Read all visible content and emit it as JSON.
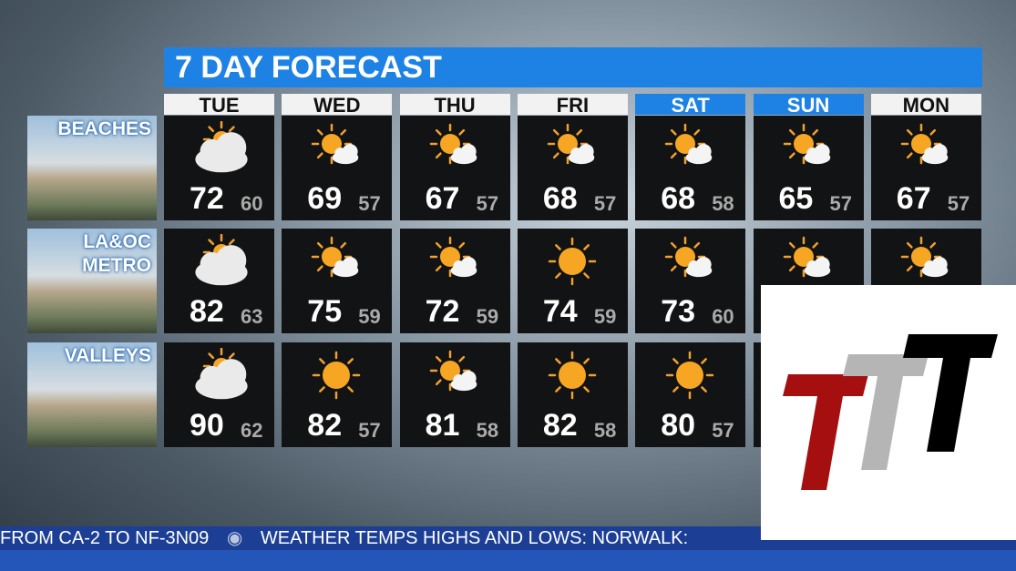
{
  "title": "7 DAY FORECAST",
  "days": [
    {
      "label": "TUE",
      "highlight": false
    },
    {
      "label": "WED",
      "highlight": false
    },
    {
      "label": "THU",
      "highlight": false
    },
    {
      "label": "FRI",
      "highlight": false
    },
    {
      "label": "SAT",
      "highlight": true
    },
    {
      "label": "SUN",
      "highlight": true
    },
    {
      "label": "MON",
      "highlight": false
    }
  ],
  "regions": [
    {
      "lines": [
        "BEACHES"
      ],
      "cells": [
        {
          "icon": "cloudy",
          "high": 72,
          "low": 60
        },
        {
          "icon": "partly",
          "high": 69,
          "low": 57
        },
        {
          "icon": "partly",
          "high": 67,
          "low": 57
        },
        {
          "icon": "partly",
          "high": 68,
          "low": 57
        },
        {
          "icon": "partly",
          "high": 68,
          "low": 58
        },
        {
          "icon": "partly",
          "high": 65,
          "low": 57
        },
        {
          "icon": "partly",
          "high": 67,
          "low": 57
        }
      ]
    },
    {
      "lines": [
        "LA&OC",
        "METRO"
      ],
      "cells": [
        {
          "icon": "cloudy",
          "high": 82,
          "low": 63
        },
        {
          "icon": "partly",
          "high": 75,
          "low": 59
        },
        {
          "icon": "partly",
          "high": 72,
          "low": 59
        },
        {
          "icon": "sun",
          "high": 74,
          "low": 59
        },
        {
          "icon": "partly",
          "high": 73,
          "low": 60
        },
        {
          "icon": "partly",
          "high": null,
          "low": null
        },
        {
          "icon": "partly",
          "high": null,
          "low": null
        }
      ]
    },
    {
      "lines": [
        "VALLEYS"
      ],
      "cells": [
        {
          "icon": "cloudy",
          "high": 90,
          "low": 62
        },
        {
          "icon": "sun",
          "high": 82,
          "low": 57
        },
        {
          "icon": "partly",
          "high": 81,
          "low": 58
        },
        {
          "icon": "sun",
          "high": 82,
          "low": 58
        },
        {
          "icon": "sun",
          "high": 80,
          "low": 57
        },
        {
          "icon": null,
          "high": null,
          "low": null
        },
        {
          "icon": null,
          "high": null,
          "low": null
        }
      ]
    }
  ],
  "ticker": [
    "FROM CA-2 TO NF-3N09",
    "WEATHER TEMPS HIGHS AND LOWS: NORWALK:"
  ]
}
